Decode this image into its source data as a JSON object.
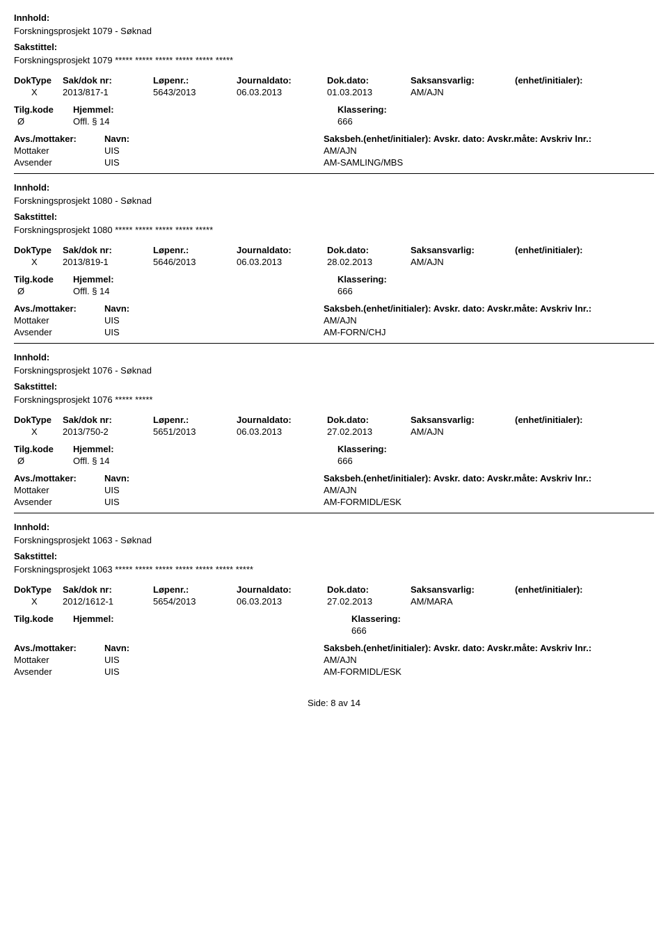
{
  "labels": {
    "innhold": "Innhold:",
    "sakstittel": "Sakstittel:",
    "doktype": "DokType",
    "sakdok": "Sak/dok nr:",
    "lopenr": "Løpenr.:",
    "journaldato": "Journaldato:",
    "dokdato": "Dok.dato:",
    "saksansvarlig": "Saksansvarlig:",
    "enhet": "(enhet/initialer):",
    "tilgkode": "Tilg.kode",
    "hjemmel": "Hjemmel:",
    "klassering": "Klassering:",
    "avsmot": "Avs./mottaker:",
    "navn": "Navn:",
    "saksbeh_header": "Saksbeh.(enhet/initialer): Avskr. dato: Avskr.måte: Avskriv lnr.:",
    "mottaker": "Mottaker",
    "avsender": "Avsender"
  },
  "records": [
    {
      "innhold": "Forskningsprosjekt 1079 - Søknad",
      "sakstittel": "Forskningsprosjekt 1079 ***** ***** ***** ***** ***** *****",
      "doktype": "X",
      "sakdok": "2013/817-1",
      "lopenr": "5643/2013",
      "journaldato": "06.03.2013",
      "dokdato": "01.03.2013",
      "saksansvarlig": "AM/AJN",
      "tilgkode": "Ø",
      "hjemmel": "Offl. § 14",
      "klassering": "666",
      "mottaker_org": "UIS",
      "mottaker_code": "AM/AJN",
      "avsender_org": "UIS",
      "avsender_code": "AM-SAMLING/MBS",
      "show_tilg": true
    },
    {
      "innhold": "Forskningsprosjekt 1080 - Søknad",
      "sakstittel": "Forskningsprosjekt 1080 ***** ***** ***** ***** *****",
      "doktype": "X",
      "sakdok": "2013/819-1",
      "lopenr": "5646/2013",
      "journaldato": "06.03.2013",
      "dokdato": "28.02.2013",
      "saksansvarlig": "AM/AJN",
      "tilgkode": "Ø",
      "hjemmel": "Offl. § 14",
      "klassering": "666",
      "mottaker_org": "UIS",
      "mottaker_code": "AM/AJN",
      "avsender_org": "UIS",
      "avsender_code": "AM-FORN/CHJ",
      "show_tilg": true
    },
    {
      "innhold": "Forskningsprosjekt 1076 - Søknad",
      "sakstittel": "Forskningsprosjekt 1076  ***** *****",
      "doktype": "X",
      "sakdok": "2013/750-2",
      "lopenr": "5651/2013",
      "journaldato": "06.03.2013",
      "dokdato": "27.02.2013",
      "saksansvarlig": "AM/AJN",
      "tilgkode": "Ø",
      "hjemmel": "Offl. § 14",
      "klassering": "666",
      "mottaker_org": "UIS",
      "mottaker_code": "AM/AJN",
      "avsender_org": "UIS",
      "avsender_code": "AM-FORMIDL/ESK",
      "show_tilg": true
    },
    {
      "innhold": "Forskningsprosjekt 1063 - Søknad",
      "sakstittel": "Forskningsprosjekt 1063 ***** ***** ***** ***** ***** ***** *****",
      "doktype": "X",
      "sakdok": "2012/1612-1",
      "lopenr": "5654/2013",
      "journaldato": "06.03.2013",
      "dokdato": "27.02.2013",
      "saksansvarlig": "AM/MARA",
      "tilgkode": "",
      "hjemmel": "",
      "klassering": "666",
      "mottaker_org": "UIS",
      "mottaker_code": "AM/AJN",
      "avsender_org": "UIS",
      "avsender_code": "AM-FORMIDL/ESK",
      "show_tilg": false
    }
  ],
  "footer": {
    "text": "Side: 8 av 14"
  }
}
